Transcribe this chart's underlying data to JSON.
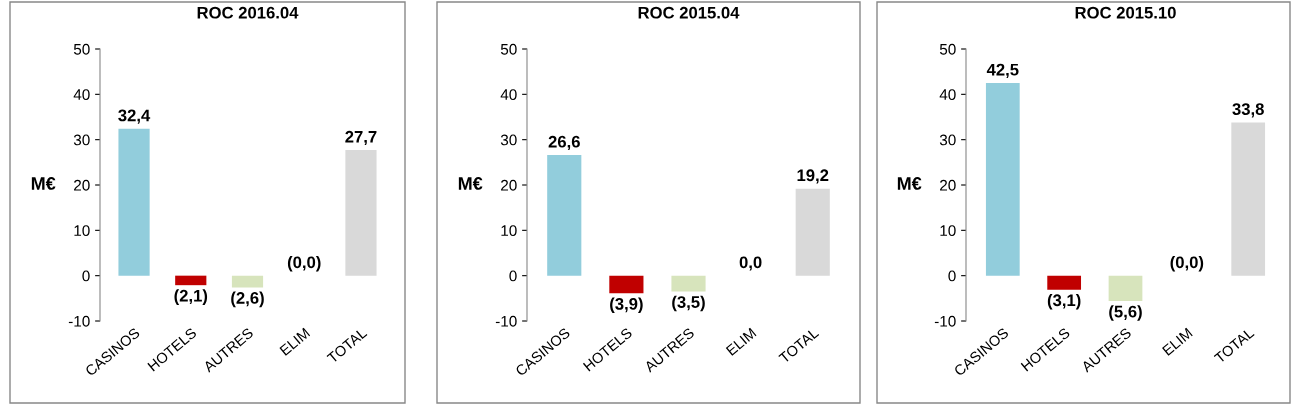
{
  "chart_data": [
    {
      "type": "bar",
      "title": "ROC 2016.04",
      "ylabel": "M€",
      "categories": [
        "CASINOS",
        "HOTELS",
        "AUTRES",
        "ELIM",
        "TOTAL"
      ],
      "values": [
        32.4,
        -2.1,
        -2.6,
        0.0,
        27.7
      ],
      "colors": [
        "#92cddc",
        "#c00000",
        "#d7e4bc",
        "#d9d9d9",
        "#d9d9d9"
      ],
      "value_labels": [
        "32,4",
        "(2,1)",
        "(2,6)",
        "(0,0)",
        "27,7"
      ],
      "ylim": [
        -10,
        50
      ],
      "yticks": [
        -10,
        0,
        10,
        20,
        30,
        40,
        50
      ],
      "grid": false,
      "legend": false
    },
    {
      "type": "bar",
      "title": "ROC 2015.04",
      "ylabel": "M€",
      "categories": [
        "CASINOS",
        "HOTELS",
        "AUTRES",
        "ELIM",
        "TOTAL"
      ],
      "values": [
        26.6,
        -3.9,
        -3.5,
        0.0,
        19.2
      ],
      "colors": [
        "#92cddc",
        "#c00000",
        "#d7e4bc",
        "#d9d9d9",
        "#d9d9d9"
      ],
      "value_labels": [
        "26,6",
        "(3,9)",
        "(3,5)",
        "0,0",
        "19,2"
      ],
      "ylim": [
        -10,
        50
      ],
      "yticks": [
        -10,
        0,
        10,
        20,
        30,
        40,
        50
      ],
      "grid": false,
      "legend": false
    },
    {
      "type": "bar",
      "title": "ROC 2015.10",
      "ylabel": "M€",
      "categories": [
        "CASINOS",
        "HOTELS",
        "AUTRES",
        "ELIM",
        "TOTAL"
      ],
      "values": [
        42.5,
        -3.1,
        -5.6,
        0.0,
        33.8
      ],
      "colors": [
        "#92cddc",
        "#c00000",
        "#d7e4bc",
        "#d9d9d9",
        "#d9d9d9"
      ],
      "value_labels": [
        "42,5",
        "(3,1)",
        "(5,6)",
        "(0,0)",
        "33,8"
      ],
      "ylim": [
        -10,
        50
      ],
      "yticks": [
        -10,
        0,
        10,
        20,
        30,
        40,
        50
      ],
      "grid": false,
      "legend": false
    }
  ]
}
